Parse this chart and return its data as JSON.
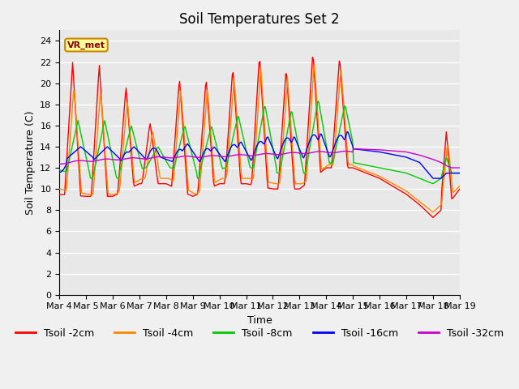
{
  "title": "Soil Temperatures Set 2",
  "xlabel": "Time",
  "ylabel": "Soil Temperature (C)",
  "annotation_text": "VR_met",
  "ylim": [
    0,
    25
  ],
  "yticks": [
    0,
    2,
    4,
    6,
    8,
    10,
    12,
    14,
    16,
    18,
    20,
    22,
    24
  ],
  "x_labels": [
    "Mar 4",
    "Mar 5",
    "Mar 6",
    "Mar 7",
    "Mar 8",
    "Mar 9",
    "Mar 10",
    "Mar 11",
    "Mar 12",
    "Mar 13",
    "Mar 14",
    "Mar 15",
    "Mar 16",
    "Mar 17",
    "Mar 18",
    "Mar 19"
  ],
  "series_colors": [
    "#ff0000",
    "#ff8800",
    "#00cc00",
    "#0000ff",
    "#cc00cc"
  ],
  "series_labels": [
    "Tsoil -2cm",
    "Tsoil -4cm",
    "Tsoil -8cm",
    "Tsoil -16cm",
    "Tsoil -32cm"
  ],
  "fig_bg_color": "#f0f0f0",
  "plot_bg_color": "#e8e8e8",
  "grid_color": "#ffffff",
  "title_fontsize": 12,
  "axis_label_fontsize": 9,
  "tick_fontsize": 8,
  "legend_fontsize": 9,
  "n_points": 480,
  "line_width": 1.0,
  "annotation_fontsize": 8
}
